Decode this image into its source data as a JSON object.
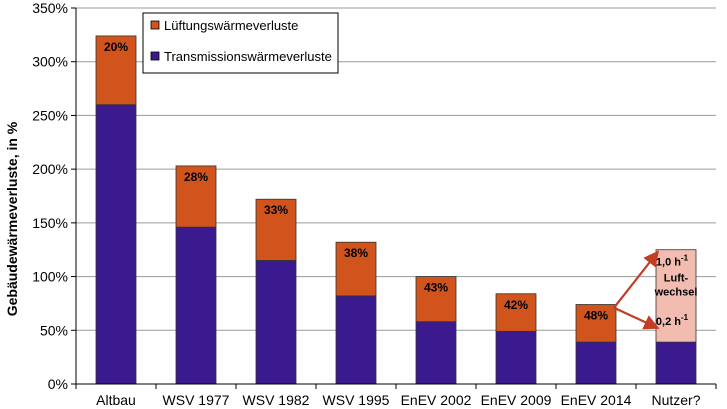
{
  "chart_data": {
    "type": "bar",
    "stacked": true,
    "ylabel": "Gebäudewärmeverluste, in %",
    "ylim": [
      0,
      350
    ],
    "ytick_values": [
      0,
      50,
      100,
      150,
      200,
      250,
      300,
      350
    ],
    "ytick_labels": [
      "0%",
      "50%",
      "100%",
      "150%",
      "200%",
      "250%",
      "300%",
      "350%"
    ],
    "grid": true,
    "legend_position": "top-left inside plot",
    "categories": [
      "Altbau",
      "WSV 1977",
      "WSV 1982",
      "WSV 1995",
      "EnEV 2002",
      "EnEV 2009",
      "EnEV 2014",
      "Nutzer?"
    ],
    "series": [
      {
        "name": "Transmissionswärmeverluste",
        "color": "#3b1a8f",
        "values": [
          260,
          146,
          115,
          82,
          58,
          49,
          39,
          39
        ]
      },
      {
        "name": "Lüftungswärmeverluste",
        "color": "#d0541c",
        "values": [
          64,
          57,
          57,
          50,
          42,
          35,
          35,
          86
        ]
      }
    ],
    "share_labels": [
      "20%",
      "28%",
      "33%",
      "38%",
      "43%",
      "42%",
      "48%",
      ""
    ],
    "annotation": {
      "top_label": "1,0 h",
      "bottom_label": "0,2 h",
      "superscript": "-1",
      "middle_lines": [
        "Luft-",
        "wechsel"
      ],
      "fill_color": "#f3bcb0",
      "arrow_color": "#c43c24",
      "upper_value": 125,
      "lower_value": 52
    }
  }
}
